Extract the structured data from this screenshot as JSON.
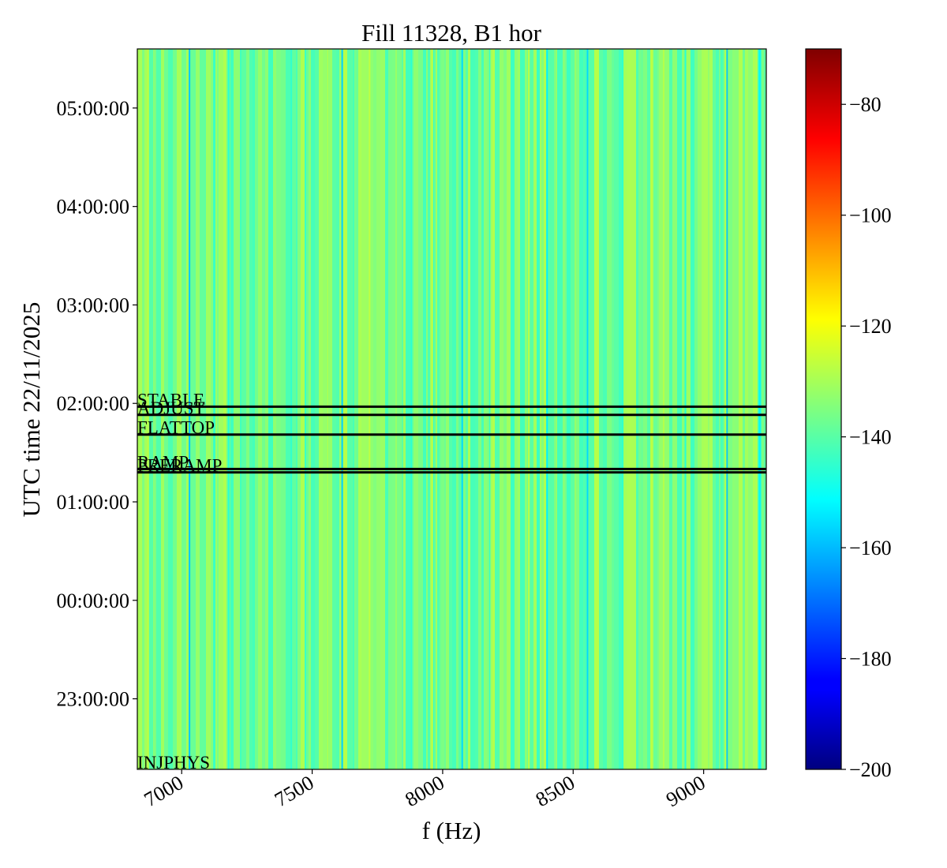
{
  "chart_data": {
    "type": "heatmap",
    "title": "Fill 11328, B1 hor",
    "xlabel": "f (Hz)",
    "ylabel": "UTC time 22/11/2025",
    "xlim": [
      6830,
      9240
    ],
    "ylim": [
      "2025-11-21T22:17:00",
      "2025-11-22T05:36:00"
    ],
    "x_ticks": [
      {
        "value": 7000,
        "label": "7000"
      },
      {
        "value": 7500,
        "label": "7500"
      },
      {
        "value": 8000,
        "label": "8000"
      },
      {
        "value": 8500,
        "label": "8500"
      },
      {
        "value": 9000,
        "label": "9000"
      }
    ],
    "y_ticks": [
      {
        "value": "2025-11-21T23:00:00",
        "label": "23:00:00"
      },
      {
        "value": "2025-11-22T00:00:00",
        "label": "00:00:00"
      },
      {
        "value": "2025-11-22T01:00:00",
        "label": "01:00:00"
      },
      {
        "value": "2025-11-22T02:00:00",
        "label": "02:00:00"
      },
      {
        "value": "2025-11-22T03:00:00",
        "label": "03:00:00"
      },
      {
        "value": "2025-11-22T04:00:00",
        "label": "04:00:00"
      },
      {
        "value": "2025-11-22T05:00:00",
        "label": "05:00:00"
      }
    ],
    "colorbar": {
      "colormap": "jet",
      "range": [
        -200,
        -70
      ],
      "ticks": [
        {
          "value": -80,
          "label": "−80"
        },
        {
          "value": -100,
          "label": "−100"
        },
        {
          "value": -120,
          "label": "−120"
        },
        {
          "value": -140,
          "label": "−140"
        },
        {
          "value": -160,
          "label": "−160"
        },
        {
          "value": -180,
          "label": "−180"
        },
        {
          "value": -200,
          "label": "−200"
        }
      ]
    },
    "base_level": -136,
    "spectral_lines": [
      {
        "freq": 7030,
        "level": -158
      },
      {
        "freq": 7615,
        "level": -157
      },
      {
        "freq": 8075,
        "level": -156
      },
      {
        "freq": 8400,
        "level": -153
      },
      {
        "freq": 8555,
        "level": -156
      },
      {
        "freq": 9090,
        "level": -158
      },
      {
        "freq": 9215,
        "level": -152
      },
      {
        "freq": 7180,
        "level": -146
      },
      {
        "freq": 7420,
        "level": -145
      },
      {
        "freq": 7880,
        "level": -146
      },
      {
        "freq": 8180,
        "level": -144
      },
      {
        "freq": 8690,
        "level": -145
      },
      {
        "freq": 8930,
        "level": -146
      },
      {
        "freq": 7560,
        "level": -128
      },
      {
        "freq": 7720,
        "level": -127
      },
      {
        "freq": 7960,
        "level": -126
      },
      {
        "freq": 8330,
        "level": -128
      },
      {
        "freq": 8800,
        "level": -127
      },
      {
        "freq": 6870,
        "level": -128
      }
    ],
    "events": [
      {
        "label": "INJPHYS",
        "time": "2025-11-21T22:17:00",
        "line": false
      },
      {
        "label": "PRERAMP",
        "time": "2025-11-22T01:18:00",
        "line": true
      },
      {
        "label": "RAMP",
        "time": "2025-11-22T01:20:00",
        "line": true
      },
      {
        "label": "FLATTOP",
        "time": "2025-11-22T01:41:00",
        "line": true
      },
      {
        "label": "ADJUST",
        "time": "2025-11-22T01:53:00",
        "line": true
      },
      {
        "label": "STABLE",
        "time": "2025-11-22T01:58:00",
        "line": true
      }
    ]
  }
}
